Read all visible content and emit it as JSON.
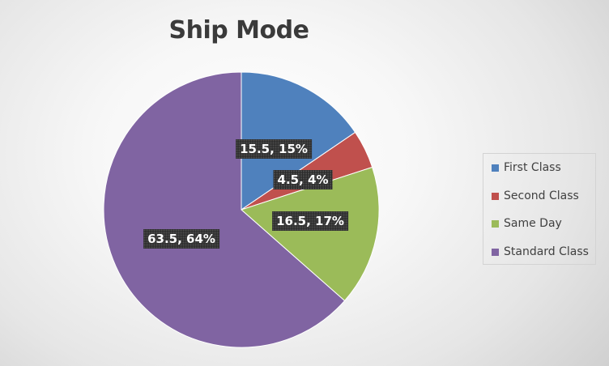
{
  "chart_data": {
    "type": "pie",
    "title": "Ship Mode",
    "categories": [
      "First Class",
      "Second Class",
      "Same Day",
      "Standard Class"
    ],
    "values": [
      15.5,
      4.5,
      16.5,
      63.5
    ],
    "data_labels": [
      "15.5, 15%",
      "4.5, 4%",
      "16.5, 17%",
      "63.5, 64%"
    ],
    "colors": [
      "#4f81bd",
      "#c0504d",
      "#9bbb59",
      "#8064a2"
    ],
    "start_angle_deg": 0,
    "direction": "clockwise",
    "legend_position": "right"
  }
}
